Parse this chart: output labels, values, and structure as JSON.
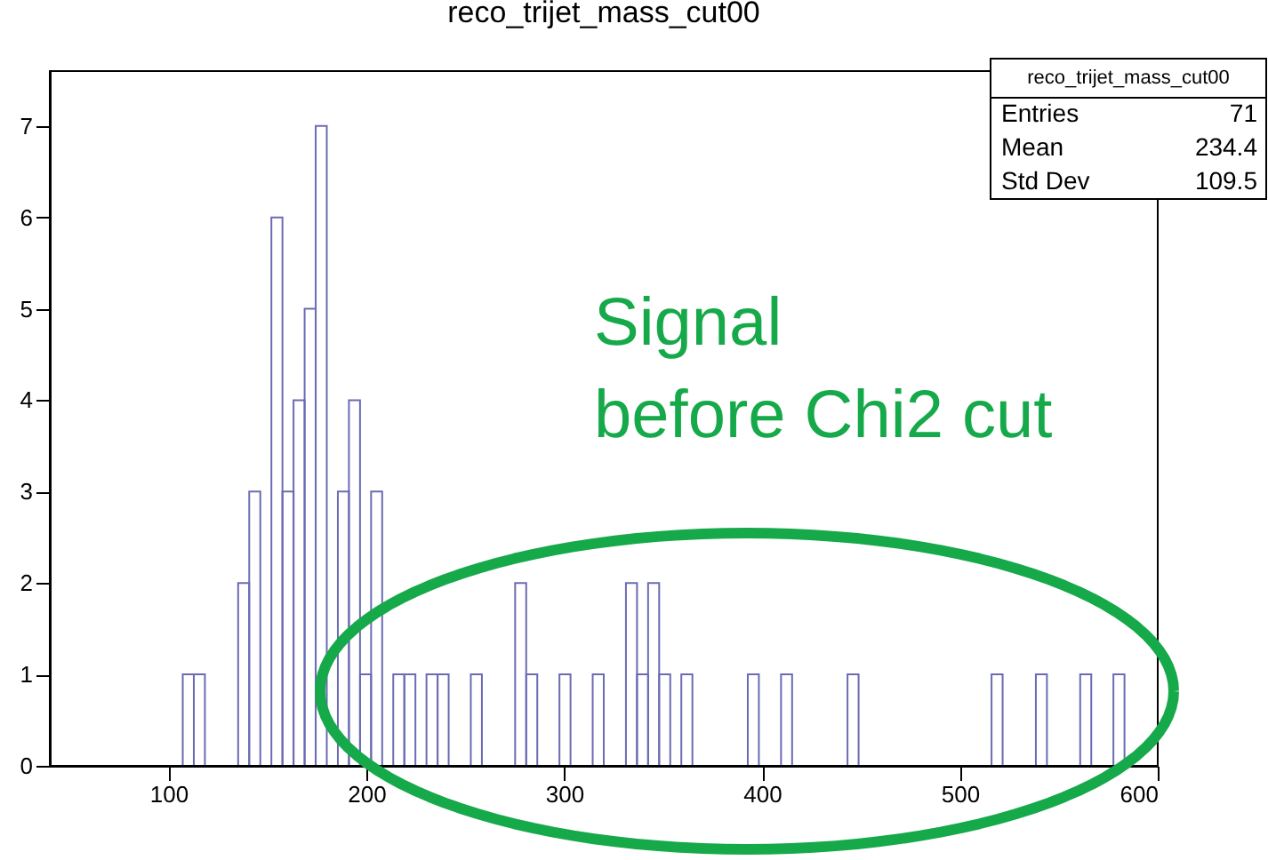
{
  "chart_data": {
    "type": "histogram",
    "title": "reco_trijet_mass_cut00",
    "bins": [
      40,
      45.6,
      51.2,
      56.8,
      62.4,
      68,
      73.6,
      79.2,
      84.8,
      90.4,
      96,
      101.6,
      107.2,
      112.8,
      118.4,
      124,
      129.6,
      135.2,
      140.8,
      146.4,
      152,
      157.6,
      163.2,
      168.8,
      174.4,
      180,
      185.6,
      191.2,
      196.8,
      202.4,
      208,
      213.6,
      219.2,
      224.8,
      230.4,
      236,
      241.6,
      247.2,
      252.8,
      258.4,
      264,
      269.6,
      275.2,
      280.8,
      286.4,
      292,
      297.6,
      303.2,
      308.8,
      314.4,
      320,
      325.6,
      331.2,
      336.8,
      342.4,
      348,
      353.6,
      359.2,
      364.8,
      370.4,
      376,
      381.6,
      387.2,
      392.8,
      398.4,
      404,
      409.6,
      415.2,
      420.8,
      426.4,
      432,
      437.6,
      443.2,
      448.8,
      454.4,
      460,
      465.6,
      471.2,
      476.8,
      482.4,
      488,
      493.6,
      499.2,
      504.8,
      510.4,
      516,
      521.6,
      527.2,
      532.8,
      538.4,
      544,
      549.6,
      555.2,
      560.8,
      566.4,
      572,
      577.6,
      583.2,
      588.8,
      594.4,
      600
    ],
    "values": [
      0,
      0,
      0,
      0,
      0,
      0,
      0,
      0,
      0,
      0,
      0,
      0,
      1,
      1,
      0,
      0,
      0,
      2,
      3,
      0,
      6,
      3,
      4,
      5,
      7,
      0,
      3,
      4,
      1,
      3,
      0,
      1,
      1,
      0,
      1,
      1,
      0,
      0,
      1,
      0,
      0,
      0,
      2,
      1,
      0,
      0,
      1,
      0,
      0,
      1,
      0,
      0,
      2,
      1,
      2,
      1,
      0,
      1,
      0,
      0,
      0,
      0,
      0,
      1,
      0,
      0,
      1,
      0,
      0,
      0,
      0,
      0,
      1,
      0,
      0,
      0,
      0,
      0,
      0,
      0,
      0,
      0,
      0,
      0,
      0,
      1,
      0,
      0,
      0,
      1,
      0,
      0,
      0,
      1,
      0,
      0,
      1,
      0,
      0,
      0
    ],
    "color": "#6b6bb3",
    "xlim": [
      40,
      600
    ],
    "xticks": [
      100,
      200,
      300,
      400,
      500,
      600
    ],
    "ylim": [
      0,
      7.6
    ],
    "yticks": [
      0,
      1,
      2,
      3,
      4,
      5,
      6,
      7
    ],
    "grid": false,
    "annotations": [
      "reco_trijet_mass_cut00",
      "Entries 71",
      "Mean 234.4",
      "Std Dev 109.5",
      "Signal\nbefore Chi2 cut"
    ]
  }
}
